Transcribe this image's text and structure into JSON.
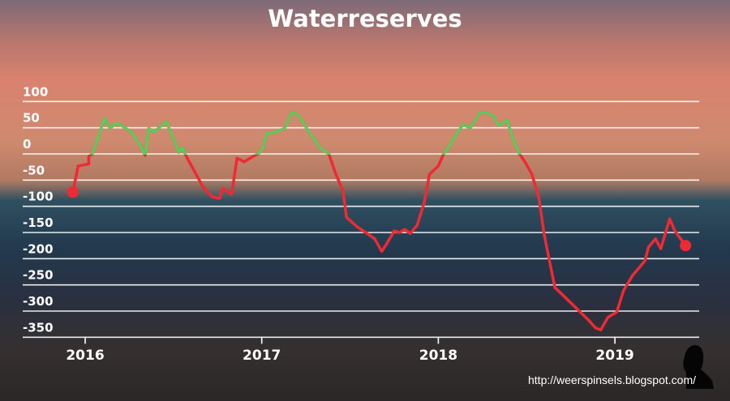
{
  "chart_data": {
    "type": "line",
    "title": "Waterreserves",
    "xlabel": "",
    "ylabel": "",
    "ylim": [
      -350,
      100
    ],
    "yticks": [
      100,
      50,
      0,
      -50,
      -100,
      -150,
      -200,
      -250,
      -300,
      -350
    ],
    "ytick_labels": [
      "100",
      "50",
      "0",
      "-50",
      "-100",
      "-150",
      "-200",
      "-250",
      "-300",
      "-350"
    ],
    "xticks": [
      2016,
      2017,
      2018,
      2019
    ],
    "xtick_labels": [
      "2016",
      "2017",
      "2018",
      "2019"
    ],
    "xlim": [
      2015.93,
      2019.4
    ],
    "grid": true,
    "colors": {
      "positive": "#5fc95a",
      "negative": "#ee2a35"
    },
    "x": [
      2015.93,
      2015.96,
      2015.98,
      2016.02,
      2016.02,
      2016.04,
      2016.06,
      2016.11,
      2016.14,
      2016.18,
      2016.23,
      2016.26,
      2016.3,
      2016.34,
      2016.36,
      2016.39,
      2016.46,
      2016.53,
      2016.55,
      2016.57,
      2016.67,
      2016.72,
      2016.76,
      2016.78,
      2016.83,
      2016.86,
      2016.9,
      2016.95,
      2016.98,
      2017.0,
      2017.03,
      2017.08,
      2017.13,
      2017.17,
      2017.21,
      2017.26,
      2017.33,
      2017.38,
      2017.42,
      2017.46,
      2017.48,
      2017.54,
      2017.61,
      2017.64,
      2017.68,
      2017.71,
      2017.75,
      2017.78,
      2017.81,
      2017.84,
      2017.88,
      2017.92,
      2017.95,
      2018.0,
      2018.03,
      2018.07,
      2018.14,
      2018.18,
      2018.23,
      2018.26,
      2018.31,
      2018.34,
      2018.39,
      2018.42,
      2018.46,
      2018.49,
      2018.53,
      2018.57,
      2018.6,
      2018.66,
      2018.71,
      2018.78,
      2018.85,
      2018.89,
      2018.92,
      2018.96,
      2019.01,
      2019.05,
      2019.1,
      2019.14,
      2019.17,
      2019.19,
      2019.23,
      2019.26,
      2019.31,
      2019.34,
      2019.4
    ],
    "values": [
      -73,
      -23,
      -22,
      -19,
      -5,
      0,
      19,
      68,
      49,
      59,
      49,
      42,
      23,
      -3,
      49,
      42,
      62,
      3,
      12,
      -3,
      -65,
      -82,
      -85,
      -66,
      -77,
      -8,
      -15,
      -5,
      0,
      8,
      39,
      42,
      49,
      80,
      73,
      46,
      12,
      0,
      -39,
      -70,
      -121,
      -139,
      -155,
      -162,
      -186,
      -170,
      -147,
      -150,
      -144,
      -152,
      -136,
      -93,
      -39,
      -23,
      0,
      19,
      57,
      49,
      77,
      80,
      73,
      54,
      65,
      31,
      0,
      -15,
      -39,
      -85,
      -155,
      -255,
      -271,
      -294,
      -317,
      -332,
      -336,
      -312,
      -302,
      -260,
      -232,
      -216,
      -204,
      -178,
      -162,
      -181,
      -124,
      -147,
      -175
    ]
  },
  "watermark": "http://weerspinsels.blogspot.com/"
}
